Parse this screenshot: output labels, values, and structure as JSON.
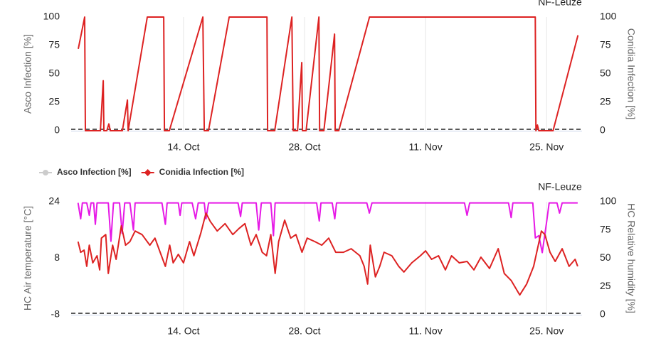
{
  "chart_data": [
    {
      "type": "line",
      "title": "NF-Leuze",
      "ylabel": "Asco Infection [%]",
      "y2label": "Conidia Infection [%]",
      "xlim": [
        1,
        60.1
      ],
      "xticks": [
        {
          "value": 14,
          "label": "14. Oct"
        },
        {
          "value": 28,
          "label": "28. Oct"
        },
        {
          "value": 42,
          "label": "11. Nov"
        },
        {
          "value": 56,
          "label": "25. Nov"
        }
      ],
      "ylim": [
        0,
        100
      ],
      "yticks": [
        0,
        25,
        50,
        75,
        100
      ],
      "y2lim": [
        0,
        100
      ],
      "y2ticks": [
        0,
        25,
        50,
        75,
        100
      ],
      "grid": true,
      "legend": "bottom",
      "series": [
        {
          "name": "Asco Infection [%]",
          "color": "#cccccc",
          "axis": "y",
          "visible": false,
          "x": [
            1.82,
            59.63
          ],
          "values": [
            0,
            0
          ]
        },
        {
          "name": "Conidia Infection [%]",
          "color": "#dd2222",
          "axis": "y2",
          "visible": true,
          "x": [
            1.82,
            2.56,
            2.65,
            4.38,
            4.71,
            4.79,
            5.12,
            5.36,
            5.53,
            6.93,
            7.51,
            7.59,
            9.81,
            11.71,
            11.79,
            12.36,
            16.24,
            16.4,
            16.89,
            19.28,
            23.65,
            23.73,
            24.55,
            26.53,
            26.69,
            27.19,
            27.68,
            27.76,
            28.18,
            29.66,
            29.74,
            30.24,
            31.47,
            31.55,
            31.96,
            35.51,
            54.69,
            54.77,
            54.94,
            55.1,
            56.75,
            59.63
          ],
          "values": [
            72,
            100,
            0,
            0,
            44,
            0,
            0,
            6,
            0,
            0,
            27,
            0,
            100,
            100,
            0,
            0,
            100,
            0,
            0,
            100,
            100,
            0,
            0,
            100,
            0,
            0,
            60,
            0,
            0,
            100,
            0,
            0,
            85,
            0,
            0,
            100,
            100,
            0,
            5,
            0,
            0,
            84
          ]
        }
      ]
    },
    {
      "type": "line",
      "title": "NF-Leuze",
      "ylabel": "HC Air temperature [°C]",
      "y2label": "HC Relative humidity [%]",
      "xlim": [
        1,
        60.1
      ],
      "xticks": [
        {
          "value": 14,
          "label": "14. Oct"
        },
        {
          "value": 28,
          "label": "28. Oct"
        },
        {
          "value": 42,
          "label": "11. Nov"
        },
        {
          "value": 56,
          "label": "25. Nov"
        }
      ],
      "ylim": [
        -8,
        24
      ],
      "yticks": [
        -8,
        8,
        24
      ],
      "y2lim": [
        0,
        100
      ],
      "y2ticks": [
        0,
        25,
        50,
        75,
        100
      ],
      "grid": true,
      "series": [
        {
          "color": "#e619e6",
          "axis": "y2",
          "visible": true,
          "x": [
            1.8,
            2.1,
            2.3,
            2.8,
            3.1,
            3.3,
            3.6,
            3.8,
            4.0,
            5.3,
            5.6,
            5.9,
            6.6,
            6.9,
            7.2,
            7.8,
            8.2,
            8.4,
            11.5,
            11.9,
            12.1,
            13.4,
            13.6,
            13.8,
            15.0,
            15.4,
            15.7,
            16.4,
            16.6,
            16.9,
            20.3,
            20.6,
            20.8,
            22.4,
            22.7,
            23.0,
            24.1,
            24.4,
            24.6,
            29.4,
            29.7,
            29.9,
            31.2,
            31.5,
            31.7,
            35.2,
            35.5,
            35.8,
            46.5,
            46.8,
            47.1,
            51.6,
            51.9,
            52.1,
            54.4,
            54.7,
            55.1,
            55.5,
            56.0,
            56.3,
            57.2,
            57.5,
            57.8,
            59.6
          ],
          "values": [
            99,
            85,
            99,
            99,
            88,
            99,
            99,
            80,
            99,
            99,
            65,
            99,
            99,
            72,
            99,
            99,
            75,
            99,
            99,
            80,
            99,
            99,
            88,
            99,
            99,
            85,
            99,
            99,
            85,
            99,
            99,
            87,
            99,
            99,
            75,
            99,
            99,
            70,
            99,
            99,
            83,
            99,
            99,
            85,
            99,
            99,
            90,
            99,
            99,
            88,
            99,
            99,
            86,
            99,
            99,
            68,
            70,
            55,
            82,
            99,
            99,
            90,
            99,
            99
          ]
        },
        {
          "color": "#dd2222",
          "axis": "y",
          "visible": true,
          "x": [
            1.8,
            2.1,
            2.5,
            2.8,
            3.1,
            3.5,
            4.0,
            4.3,
            4.5,
            5.0,
            5.3,
            5.8,
            6.2,
            6.8,
            7.3,
            7.8,
            8.4,
            9.2,
            10.1,
            10.7,
            11.3,
            11.9,
            12.4,
            12.8,
            13.4,
            14.0,
            14.7,
            15.2,
            16.0,
            16.6,
            17.1,
            17.9,
            18.8,
            19.7,
            20.4,
            21.1,
            21.8,
            22.4,
            23.1,
            23.6,
            24.1,
            24.6,
            25.0,
            25.7,
            26.4,
            27.0,
            27.7,
            28.3,
            29.2,
            30.0,
            30.8,
            31.6,
            32.5,
            33.4,
            34.4,
            34.9,
            35.3,
            35.6,
            36.2,
            36.7,
            37.2,
            38.1,
            38.9,
            39.5,
            40.4,
            41.4,
            42.0,
            42.7,
            43.5,
            44.3,
            45.0,
            45.9,
            46.8,
            47.6,
            48.4,
            49.4,
            50.4,
            51.1,
            51.9,
            52.9,
            53.7,
            54.5,
            55.4,
            55.8,
            56.4,
            57.0,
            57.8,
            58.6,
            59.3,
            59.6
          ],
          "values": [
            12.7,
            9.7,
            10.3,
            5.7,
            11.7,
            6.7,
            8.7,
            4.7,
            13.7,
            14.7,
            3.7,
            11.7,
            7.7,
            17.2,
            11.7,
            12.7,
            15.7,
            14.7,
            11.7,
            13.7,
            9.7,
            5.7,
            11.7,
            6.7,
            9.1,
            6.7,
            12.7,
            8.7,
            15.1,
            20.8,
            18.4,
            15.7,
            17.8,
            14.7,
            16.4,
            17.8,
            11.7,
            14.7,
            9.7,
            8.7,
            14.7,
            3.7,
            12.7,
            18.8,
            13.7,
            14.7,
            9.7,
            13.7,
            12.7,
            11.7,
            13.7,
            9.7,
            9.7,
            10.7,
            8.7,
            5.7,
            0.7,
            11.7,
            2.7,
            5.7,
            9.7,
            8.7,
            5.7,
            4.1,
            6.7,
            8.7,
            10.1,
            7.7,
            8.7,
            4.7,
            8.7,
            6.7,
            7.1,
            4.7,
            8.3,
            5.1,
            10.7,
            3.7,
            1.7,
            -2.4,
            0.7,
            5.7,
            15.7,
            14.7,
            9.7,
            7.1,
            10.7,
            5.7,
            7.7,
            5.7
          ]
        }
      ]
    }
  ]
}
